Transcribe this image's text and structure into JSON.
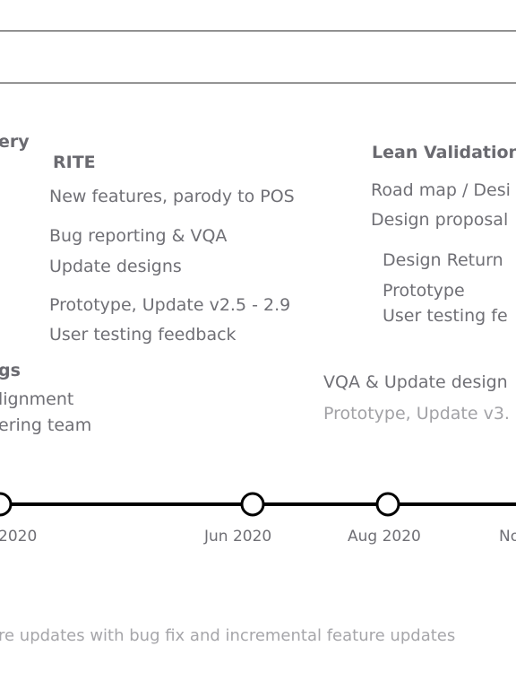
{
  "groups": {
    "left_header_fragment": "ery",
    "rite": {
      "title": "RITE",
      "items": [
        "New features, parody to POS",
        "Bug reporting & VQA",
        "Update designs",
        "Prototype, Update v2.5 - 2.9",
        "User testing feedback"
      ]
    },
    "lean": {
      "title": "Lean Validation",
      "items": [
        "Road map / Desi",
        "Design proposal",
        "Design Return",
        "Prototype",
        "User testing fe"
      ]
    },
    "lower_left": {
      "title": "gs",
      "items": [
        "lignment",
        "ering team"
      ]
    },
    "lower_right": {
      "items": [
        "VQA & Update design",
        "Prototype, Update v3."
      ]
    }
  },
  "timeline": {
    "dates": [
      "2020",
      "Jun 2020",
      "Aug 2020",
      "No"
    ]
  },
  "footer": {
    "text": "re updates with bug fix and incremental feature updates"
  }
}
